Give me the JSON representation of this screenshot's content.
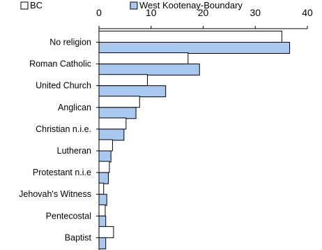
{
  "chart_data": {
    "type": "bar",
    "orientation": "horizontal",
    "categories": [
      "No religion",
      "Roman Catholic",
      "United Church",
      "Anglican",
      "Christian n.i.e.",
      "Lutheran",
      "Protestant n.i.e",
      "Jehovah's Witness",
      "Pentecostal",
      "Baptist"
    ],
    "series": [
      {
        "name": "BC",
        "color": "#ffffff",
        "values": [
          35.1,
          17.1,
          9.3,
          7.8,
          5.2,
          2.6,
          2.0,
          0.9,
          1.2,
          2.8
        ]
      },
      {
        "name": "West Kootenay-Boundary",
        "color": "#a9c8f0",
        "values": [
          36.6,
          19.3,
          12.8,
          7.1,
          4.8,
          2.3,
          1.8,
          1.5,
          1.3,
          1.3
        ]
      }
    ],
    "xticks": [
      "0",
      "10",
      "20",
      "30",
      "40"
    ],
    "xlim": [
      0,
      40
    ],
    "xaxis_position": "top",
    "legend_position": "top",
    "grid": false
  }
}
